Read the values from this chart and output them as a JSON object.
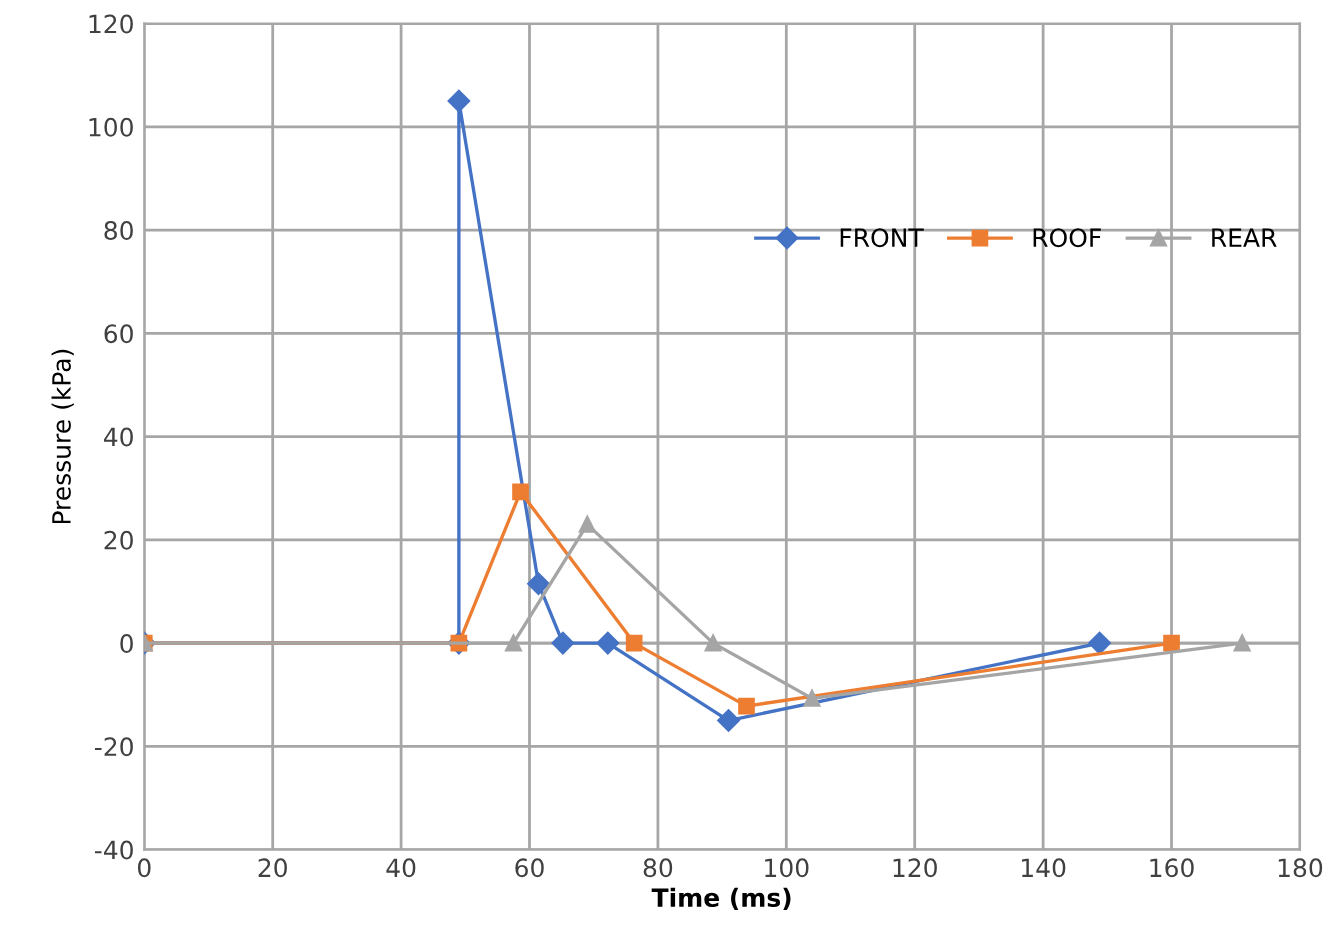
{
  "chart_data": {
    "type": "line",
    "xlabel": "Time (ms)",
    "ylabel": "Pressure (kPa)",
    "xlim": [
      0,
      180
    ],
    "xticks": [
      0,
      20,
      40,
      60,
      80,
      100,
      120,
      140,
      160,
      180
    ],
    "ylim": [
      -40,
      120
    ],
    "yticks": [
      -40,
      -20,
      0,
      20,
      40,
      60,
      80,
      100,
      120
    ],
    "grid": true,
    "legend": "right",
    "line_style": "solid",
    "series": [
      {
        "name": "FRONT",
        "color": "#4472c4",
        "marker": "diamond",
        "x": [
          0,
          49,
          49,
          61.4,
          65.2,
          72.2,
          91,
          148.8
        ],
        "values": [
          0,
          0,
          105,
          11.5,
          0,
          0,
          -15,
          0
        ]
      },
      {
        "name": "ROOF",
        "color": "#ed7d31",
        "marker": "square",
        "x": [
          0,
          49,
          58.6,
          76.3,
          93.8,
          160
        ],
        "values": [
          0,
          0,
          29.3,
          0,
          -12.2,
          0
        ]
      },
      {
        "name": "REAR",
        "color": "#a5a5a5",
        "marker": "triangle",
        "x": [
          0,
          57.5,
          69,
          88.6,
          104,
          171
        ],
        "values": [
          0,
          0,
          23,
          0,
          -10.7,
          0
        ]
      }
    ]
  }
}
